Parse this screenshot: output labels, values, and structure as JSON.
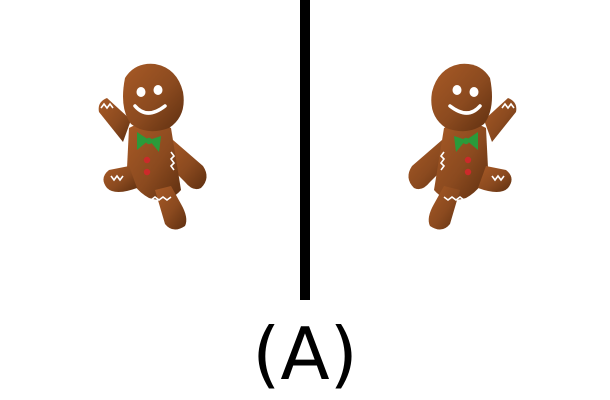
{
  "option_label": "(A)",
  "colors": {
    "background": "#ffffff",
    "divider": "#000000",
    "cookie": "#8b4a1f",
    "icing": "#ffffff",
    "bow": "#2a9a3a",
    "buttons": "#cc2a2a"
  },
  "panels": [
    {
      "icon": "gingerbread-man-icon",
      "orientation": "original"
    },
    {
      "icon": "gingerbread-man-icon",
      "orientation": "mirrored"
    }
  ]
}
